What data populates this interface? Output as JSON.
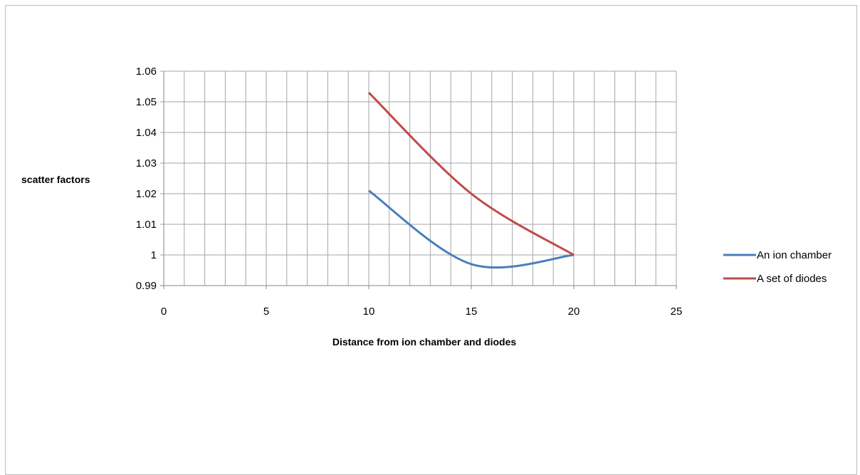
{
  "chart_data": {
    "type": "line",
    "title": "",
    "xlabel": "Distance from ion chamber and diodes",
    "ylabel": "scatter factors",
    "xlim": [
      0,
      25
    ],
    "ylim": [
      0.99,
      1.06
    ],
    "x_ticks": [
      "0",
      "5",
      "10",
      "15",
      "20",
      "25"
    ],
    "y_ticks": [
      "0.99",
      "1",
      "1.01",
      "1.02",
      "1.03",
      "1.04",
      "1.05",
      "1.06"
    ],
    "grid": true,
    "smooth": true,
    "legend_position": "right",
    "series": [
      {
        "name": "An ion chamber",
        "color": "#4a7ebb",
        "x": [
          10,
          15,
          20
        ],
        "y": [
          1.021,
          0.997,
          1.0
        ]
      },
      {
        "name": "A set of diodes",
        "color": "#be4b48",
        "x": [
          10,
          15,
          20
        ],
        "y": [
          1.053,
          1.02,
          1.0
        ]
      }
    ]
  }
}
